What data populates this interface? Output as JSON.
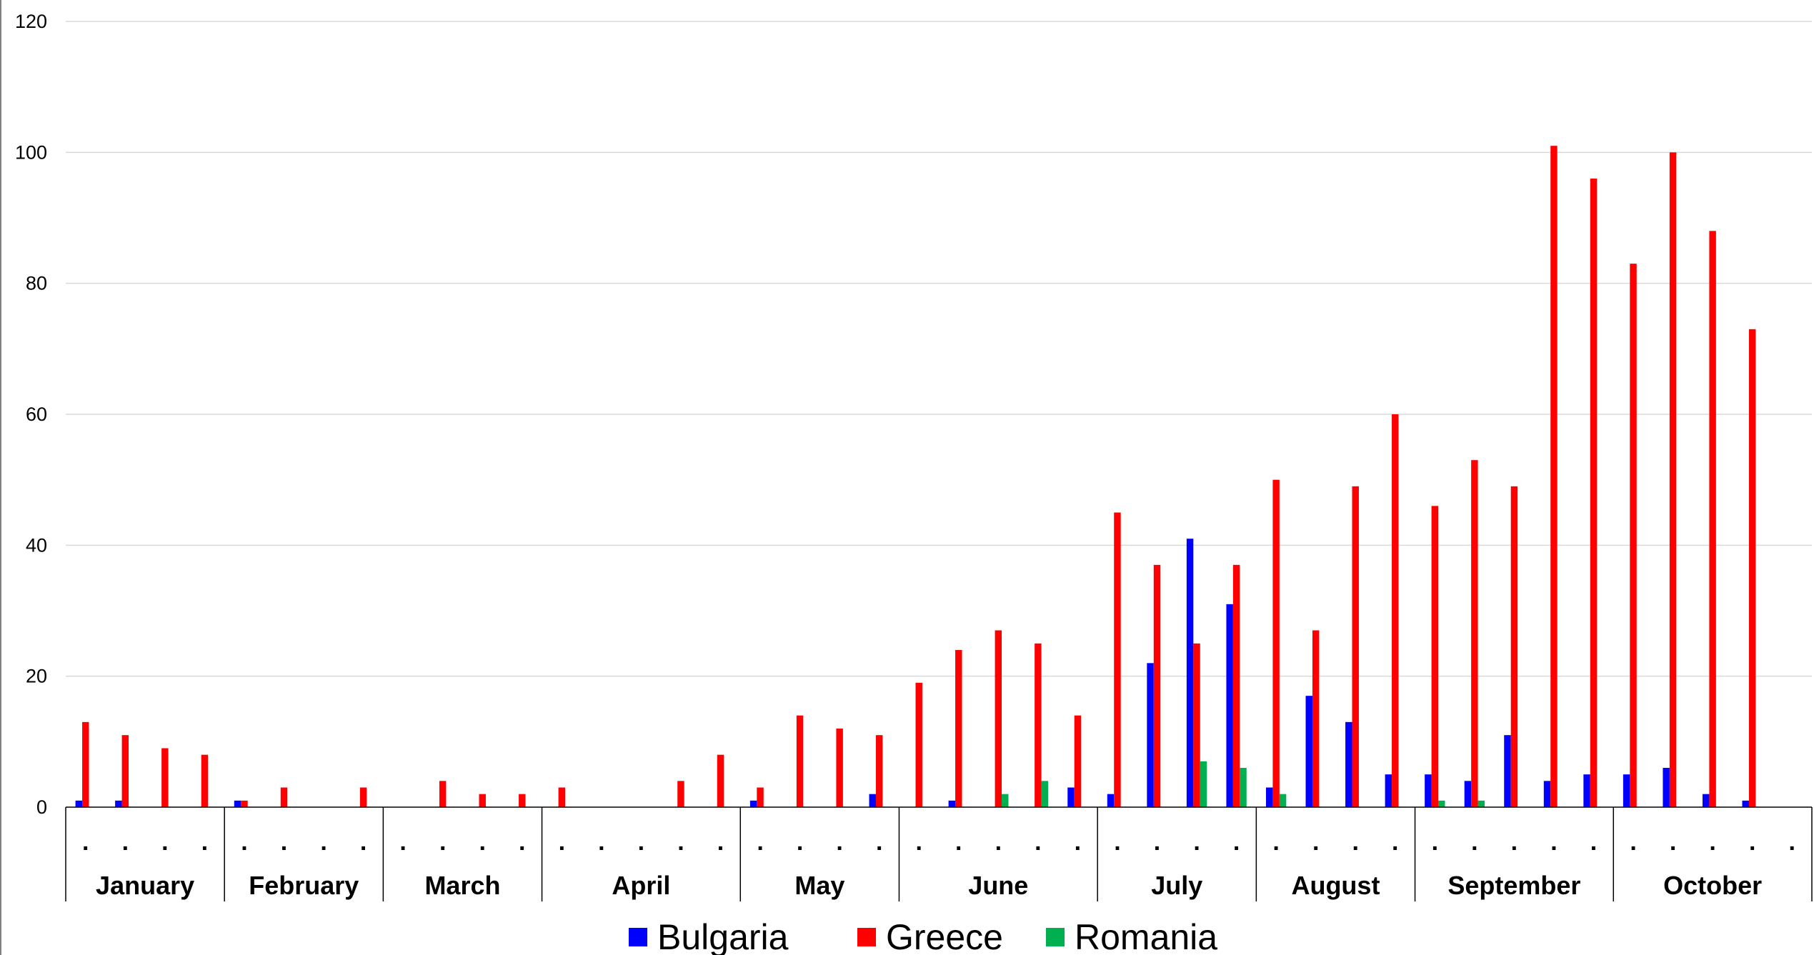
{
  "chart_data": {
    "type": "bar",
    "ylim": [
      0,
      120
    ],
    "y_ticks": [
      0,
      20,
      40,
      60,
      80,
      100,
      120
    ],
    "grid": true,
    "legend_position": "bottom",
    "months": [
      {
        "label": "January",
        "weeks": 4
      },
      {
        "label": "February",
        "weeks": 4
      },
      {
        "label": "March",
        "weeks": 4
      },
      {
        "label": "April",
        "weeks": 5
      },
      {
        "label": "May",
        "weeks": 4
      },
      {
        "label": "June",
        "weeks": 5
      },
      {
        "label": "July",
        "weeks": 4
      },
      {
        "label": "August",
        "weeks": 4
      },
      {
        "label": "September",
        "weeks": 5
      },
      {
        "label": "October",
        "weeks": 5
      }
    ],
    "week_tick_label": ".",
    "series": [
      {
        "name": "Bulgaria",
        "color": "#0000ff",
        "values": [
          1,
          1,
          0,
          0,
          1,
          0,
          0,
          0,
          0,
          0,
          0,
          0,
          0,
          0,
          0,
          0,
          0,
          1,
          0,
          0,
          2,
          0,
          1,
          0,
          0,
          3,
          2,
          22,
          41,
          31,
          3,
          17,
          13,
          5,
          5,
          4,
          11,
          4,
          5,
          5,
          6,
          2,
          1,
          0
        ]
      },
      {
        "name": "Greece",
        "color": "#ff0000",
        "values": [
          13,
          11,
          9,
          8,
          1,
          3,
          0,
          3,
          0,
          4,
          2,
          2,
          3,
          0,
          0,
          4,
          8,
          3,
          14,
          12,
          11,
          19,
          24,
          27,
          25,
          14,
          45,
          37,
          25,
          37,
          50,
          27,
          49,
          60,
          46,
          53,
          49,
          101,
          96,
          83,
          100,
          88,
          73,
          0
        ]
      },
      {
        "name": "Romania",
        "color": "#00b050",
        "values": [
          0,
          0,
          0,
          0,
          0,
          0,
          0,
          0,
          0,
          0,
          0,
          0,
          0,
          0,
          0,
          0,
          0,
          0,
          0,
          0,
          0,
          0,
          0,
          2,
          4,
          0,
          0,
          0,
          7,
          6,
          2,
          0,
          0,
          0,
          1,
          1,
          0,
          0,
          0,
          0,
          0,
          0,
          0,
          0
        ]
      }
    ]
  }
}
